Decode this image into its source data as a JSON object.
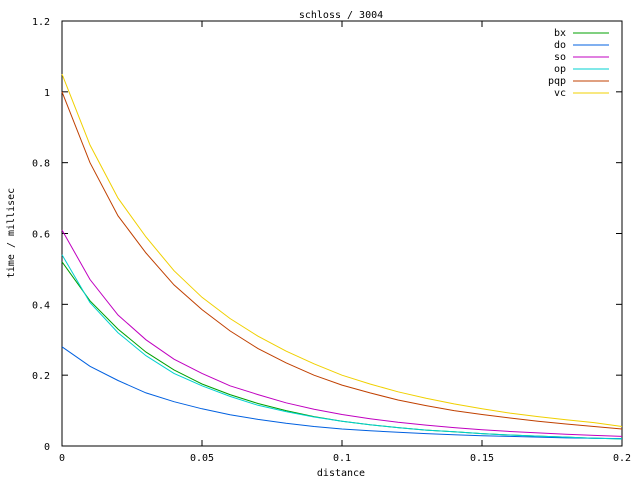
{
  "chart_data": {
    "type": "line",
    "title": "schloss / 3004",
    "xlabel": "distance",
    "ylabel": "time / millisec",
    "xlim": [
      0,
      0.2
    ],
    "ylim": [
      0,
      1.2
    ],
    "x_ticks": [
      0,
      0.05,
      0.1,
      0.15,
      0.2
    ],
    "x_tick_labels": [
      "0",
      "0.05",
      "0.1",
      "0.15",
      "0.2"
    ],
    "y_ticks": [
      0,
      0.2,
      0.4,
      0.6,
      0.8,
      1.0,
      1.2
    ],
    "y_tick_labels": [
      "0",
      "0.2",
      "0.4",
      "0.6",
      "0.8",
      "1",
      "1.2"
    ],
    "grid": false,
    "legend_position": "top-right",
    "x": [
      0,
      0.01,
      0.02,
      0.03,
      0.04,
      0.05,
      0.06,
      0.07,
      0.08,
      0.09,
      0.1,
      0.11,
      0.12,
      0.13,
      0.14,
      0.15,
      0.16,
      0.17,
      0.18,
      0.19,
      0.2
    ],
    "series": [
      {
        "name": "bx",
        "color": "#00a000",
        "values": [
          0.52,
          0.41,
          0.33,
          0.265,
          0.215,
          0.175,
          0.145,
          0.12,
          0.1,
          0.083,
          0.07,
          0.06,
          0.052,
          0.045,
          0.04,
          0.035,
          0.031,
          0.028,
          0.025,
          0.022,
          0.02
        ]
      },
      {
        "name": "do",
        "color": "#0060e0",
        "values": [
          0.28,
          0.225,
          0.185,
          0.15,
          0.125,
          0.105,
          0.088,
          0.075,
          0.064,
          0.055,
          0.048,
          0.043,
          0.039,
          0.035,
          0.032,
          0.029,
          0.027,
          0.025,
          0.023,
          0.022,
          0.021
        ]
      },
      {
        "name": "so",
        "color": "#c000c0",
        "values": [
          0.61,
          0.47,
          0.37,
          0.3,
          0.245,
          0.205,
          0.17,
          0.145,
          0.122,
          0.104,
          0.089,
          0.077,
          0.067,
          0.059,
          0.052,
          0.046,
          0.041,
          0.037,
          0.033,
          0.03,
          0.027
        ]
      },
      {
        "name": "op",
        "color": "#00d0d0",
        "values": [
          0.54,
          0.405,
          0.32,
          0.255,
          0.205,
          0.17,
          0.14,
          0.115,
          0.097,
          0.082,
          0.07,
          0.06,
          0.052,
          0.045,
          0.04,
          0.035,
          0.031,
          0.028,
          0.025,
          0.022,
          0.02
        ]
      },
      {
        "name": "pqp",
        "color": "#c04000",
        "values": [
          1.0,
          0.8,
          0.65,
          0.545,
          0.455,
          0.385,
          0.325,
          0.275,
          0.235,
          0.2,
          0.172,
          0.15,
          0.13,
          0.114,
          0.1,
          0.089,
          0.079,
          0.07,
          0.062,
          0.055,
          0.048
        ]
      },
      {
        "name": "vc",
        "color": "#f0d000",
        "values": [
          1.05,
          0.85,
          0.7,
          0.59,
          0.495,
          0.42,
          0.36,
          0.31,
          0.268,
          0.232,
          0.2,
          0.175,
          0.153,
          0.135,
          0.119,
          0.105,
          0.093,
          0.083,
          0.074,
          0.066,
          0.055
        ]
      }
    ]
  }
}
